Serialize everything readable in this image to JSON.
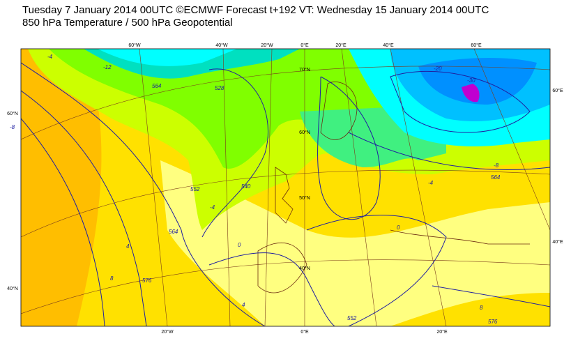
{
  "header": {
    "line1": "Tuesday 7 January 2014 00UTC ©ECMWF Forecast t+192 VT: Wednesday 15 January 2014 00UTC",
    "line2": "850 hPa Temperature / 500 hPa Geopotential"
  },
  "graticule_labels": [
    "60°W",
    "40°W",
    "20°W",
    "0°E",
    "20°E",
    "40°E",
    "60°E",
    "20°W",
    "0°E",
    "20°E",
    "60°N",
    "40°N",
    "60°E",
    "40°E",
    "70°N",
    "60°N",
    "50°N",
    "40°N"
  ],
  "contour_labels": [
    "-20",
    "-30",
    "-8",
    "-4",
    "-4",
    "0",
    "0",
    "4",
    "8",
    "4",
    "576",
    "564",
    "552",
    "540",
    "528",
    "564",
    "-8",
    "-12",
    "-4",
    "552",
    "564",
    "8",
    "576"
  ]
}
